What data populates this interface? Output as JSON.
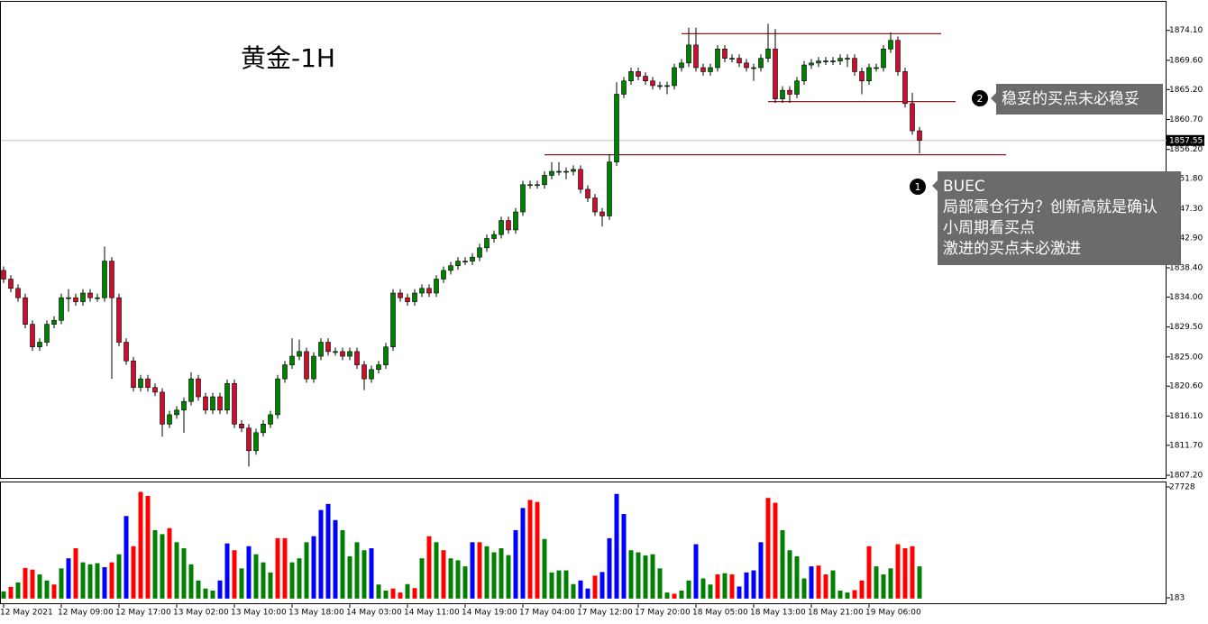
{
  "chart_data": {
    "type": "candlestick",
    "title": "黄金-1H",
    "ylim": [
      1806.8,
      1878.4
    ],
    "yticks": [
      {
        "value": 1874.1,
        "label": "1874.10"
      },
      {
        "value": 1869.6,
        "label": "1869.60"
      },
      {
        "value": 1865.2,
        "label": "1865.20"
      },
      {
        "value": 1860.7,
        "label": "1860.70"
      },
      {
        "value": 1856.2,
        "label": "1856.20"
      },
      {
        "value": 1851.8,
        "label": "1851.80"
      },
      {
        "value": 1847.3,
        "label": "1847.30"
      },
      {
        "value": 1842.9,
        "label": "1842.90"
      },
      {
        "value": 1838.4,
        "label": "1838.40"
      },
      {
        "value": 1834.0,
        "label": "1834.00"
      },
      {
        "value": 1829.5,
        "label": "1829.50"
      },
      {
        "value": 1825.0,
        "label": "1825.00"
      },
      {
        "value": 1820.6,
        "label": "1820.60"
      },
      {
        "value": 1816.1,
        "label": "1816.10"
      },
      {
        "value": 1811.7,
        "label": "1811.70"
      },
      {
        "value": 1807.2,
        "label": "1807.20"
      }
    ],
    "xticks": [
      {
        "value": 0,
        "label": "12 May 2021"
      },
      {
        "value": 8,
        "label": "12 May 09:00"
      },
      {
        "value": 16,
        "label": "12 May 17:00"
      },
      {
        "value": 24,
        "label": "13 May 02:00"
      },
      {
        "value": 32,
        "label": "13 May 10:00"
      },
      {
        "value": 40,
        "label": "13 May 18:00"
      },
      {
        "value": 48,
        "label": "14 May 03:00"
      },
      {
        "value": 56,
        "label": "14 May 11:00"
      },
      {
        "value": 64,
        "label": "14 May 19:00"
      },
      {
        "value": 72,
        "label": "17 May 04:00"
      },
      {
        "value": 80,
        "label": "17 May 12:00"
      },
      {
        "value": 88,
        "label": "17 May 20:00"
      },
      {
        "value": 96,
        "label": "18 May 05:00"
      },
      {
        "value": 104,
        "label": "18 May 13:00"
      },
      {
        "value": 112,
        "label": "18 May 21:00"
      },
      {
        "value": 120,
        "label": "19 May 06:00"
      }
    ],
    "up_color": "#008000",
    "down_color": "#c8102e",
    "candles": [
      [
        1838.0,
        1838.6,
        1836.1,
        1836.7
      ],
      [
        1836.7,
        1837.3,
        1834.7,
        1835.3
      ],
      [
        1835.3,
        1835.9,
        1833.3,
        1833.9
      ],
      [
        1833.9,
        1834.5,
        1829.3,
        1829.9
      ],
      [
        1829.9,
        1830.5,
        1825.9,
        1826.5
      ],
      [
        1826.5,
        1827.8,
        1825.9,
        1827.2
      ],
      [
        1827.2,
        1830.5,
        1826.6,
        1829.9
      ],
      [
        1829.9,
        1831.1,
        1829.3,
        1830.5
      ],
      [
        1830.5,
        1834.5,
        1829.9,
        1833.9
      ],
      [
        1833.9,
        1835.2,
        1831.8,
        1833.9
      ],
      [
        1833.9,
        1834.5,
        1832.7,
        1833.3
      ],
      [
        1833.3,
        1835.2,
        1832.7,
        1834.6
      ],
      [
        1834.6,
        1835.2,
        1833.3,
        1833.9
      ],
      [
        1833.9,
        1834.5,
        1833.3,
        1833.9
      ],
      [
        1833.9,
        1841.6,
        1833.3,
        1839.4
      ],
      [
        1839.4,
        1840.0,
        1821.7,
        1833.9
      ],
      [
        1833.9,
        1834.5,
        1826.6,
        1827.2
      ],
      [
        1827.2,
        1827.8,
        1823.8,
        1824.4
      ],
      [
        1824.4,
        1825.0,
        1819.8,
        1820.4
      ],
      [
        1820.4,
        1822.3,
        1819.8,
        1821.7
      ],
      [
        1821.7,
        1822.3,
        1819.8,
        1820.4
      ],
      [
        1820.4,
        1821.0,
        1819.1,
        1819.7
      ],
      [
        1819.7,
        1820.3,
        1813.0,
        1814.9
      ],
      [
        1814.9,
        1816.9,
        1814.3,
        1816.3
      ],
      [
        1816.3,
        1817.6,
        1815.7,
        1817.0
      ],
      [
        1817.0,
        1818.9,
        1813.6,
        1818.3
      ],
      [
        1818.3,
        1822.7,
        1817.7,
        1821.7
      ],
      [
        1821.7,
        1822.3,
        1818.4,
        1819.0
      ],
      [
        1819.0,
        1819.6,
        1816.4,
        1817.0
      ],
      [
        1817.0,
        1819.6,
        1816.4,
        1819.0
      ],
      [
        1819.0,
        1819.6,
        1816.4,
        1817.0
      ],
      [
        1817.0,
        1821.6,
        1816.4,
        1821.0
      ],
      [
        1821.0,
        1821.6,
        1814.3,
        1814.9
      ],
      [
        1814.9,
        1815.5,
        1813.7,
        1814.3
      ],
      [
        1814.3,
        1814.9,
        1808.5,
        1810.9
      ],
      [
        1810.9,
        1814.2,
        1810.3,
        1813.6
      ],
      [
        1813.6,
        1815.5,
        1813.0,
        1814.9
      ],
      [
        1814.9,
        1816.9,
        1814.3,
        1816.3
      ],
      [
        1816.3,
        1822.3,
        1815.7,
        1821.7
      ],
      [
        1821.7,
        1824.4,
        1821.1,
        1823.8
      ],
      [
        1823.8,
        1827.8,
        1823.2,
        1825.1
      ],
      [
        1825.1,
        1827.6,
        1824.5,
        1825.8
      ],
      [
        1825.8,
        1826.4,
        1821.1,
        1821.7
      ],
      [
        1821.7,
        1825.7,
        1821.1,
        1825.1
      ],
      [
        1825.1,
        1827.8,
        1824.5,
        1827.2
      ],
      [
        1827.2,
        1827.8,
        1825.2,
        1825.8
      ],
      [
        1825.8,
        1826.4,
        1825.2,
        1825.8
      ],
      [
        1825.8,
        1826.4,
        1824.5,
        1825.1
      ],
      [
        1825.1,
        1826.4,
        1824.5,
        1825.8
      ],
      [
        1825.8,
        1826.4,
        1823.2,
        1823.8
      ],
      [
        1823.8,
        1824.4,
        1820.0,
        1821.7
      ],
      [
        1821.7,
        1823.7,
        1821.1,
        1823.1
      ],
      [
        1823.1,
        1824.4,
        1822.5,
        1823.8
      ],
      [
        1823.8,
        1827.1,
        1823.2,
        1826.5
      ],
      [
        1826.5,
        1835.2,
        1825.9,
        1834.6
      ],
      [
        1834.6,
        1835.2,
        1833.3,
        1833.9
      ],
      [
        1833.9,
        1834.5,
        1832.7,
        1833.3
      ],
      [
        1833.3,
        1835.2,
        1832.7,
        1834.6
      ],
      [
        1834.6,
        1835.9,
        1834.0,
        1835.3
      ],
      [
        1835.3,
        1835.9,
        1834.0,
        1834.6
      ],
      [
        1834.6,
        1837.3,
        1834.0,
        1836.7
      ],
      [
        1836.7,
        1838.6,
        1836.1,
        1838.0
      ],
      [
        1838.0,
        1839.3,
        1837.4,
        1838.7
      ],
      [
        1838.7,
        1840.0,
        1838.1,
        1839.4
      ],
      [
        1839.4,
        1840.0,
        1838.8,
        1839.4
      ],
      [
        1839.4,
        1840.6,
        1838.8,
        1840.0
      ],
      [
        1840.0,
        1842.0,
        1839.4,
        1841.4
      ],
      [
        1841.4,
        1843.4,
        1840.8,
        1842.8
      ],
      [
        1842.8,
        1844.0,
        1842.2,
        1843.4
      ],
      [
        1843.4,
        1846.1,
        1842.8,
        1845.5
      ],
      [
        1845.5,
        1846.1,
        1843.5,
        1844.1
      ],
      [
        1844.1,
        1847.4,
        1843.5,
        1846.8
      ],
      [
        1846.8,
        1851.5,
        1846.2,
        1850.9
      ],
      [
        1850.9,
        1851.5,
        1850.3,
        1850.9
      ],
      [
        1850.9,
        1851.5,
        1850.3,
        1850.9
      ],
      [
        1850.9,
        1852.9,
        1850.3,
        1852.3
      ],
      [
        1852.3,
        1854.3,
        1851.7,
        1852.9
      ],
      [
        1852.9,
        1854.3,
        1852.3,
        1852.9
      ],
      [
        1852.9,
        1853.5,
        1851.7,
        1852.9
      ],
      [
        1852.9,
        1853.8,
        1852.3,
        1853.2
      ],
      [
        1853.2,
        1853.8,
        1849.6,
        1850.2
      ],
      [
        1850.2,
        1850.8,
        1848.3,
        1848.9
      ],
      [
        1848.9,
        1849.5,
        1846.2,
        1846.8
      ],
      [
        1846.8,
        1847.4,
        1844.6,
        1846.2
      ],
      [
        1846.2,
        1855.5,
        1845.6,
        1854.3
      ],
      [
        1854.3,
        1866.3,
        1853.7,
        1864.5
      ],
      [
        1864.5,
        1867.1,
        1863.9,
        1866.5
      ],
      [
        1866.5,
        1868.5,
        1865.9,
        1867.9
      ],
      [
        1867.9,
        1868.5,
        1866.6,
        1867.2
      ],
      [
        1867.2,
        1867.8,
        1865.9,
        1866.5
      ],
      [
        1866.5,
        1867.1,
        1865.2,
        1865.8
      ],
      [
        1865.8,
        1866.4,
        1865.2,
        1865.8
      ],
      [
        1865.8,
        1866.4,
        1864.5,
        1865.8
      ],
      [
        1865.8,
        1869.1,
        1865.2,
        1868.5
      ],
      [
        1868.5,
        1869.8,
        1867.9,
        1869.2
      ],
      [
        1869.2,
        1874.5,
        1868.6,
        1871.9
      ],
      [
        1871.9,
        1874.5,
        1867.9,
        1868.5
      ],
      [
        1868.5,
        1869.1,
        1867.3,
        1867.9
      ],
      [
        1867.9,
        1869.1,
        1867.3,
        1868.5
      ],
      [
        1868.5,
        1871.9,
        1867.9,
        1871.3
      ],
      [
        1871.3,
        1871.9,
        1869.3,
        1869.9
      ],
      [
        1869.9,
        1870.5,
        1869.3,
        1869.9
      ],
      [
        1869.9,
        1870.5,
        1868.6,
        1869.2
      ],
      [
        1869.2,
        1869.8,
        1867.9,
        1868.5
      ],
      [
        1868.5,
        1869.1,
        1866.5,
        1868.5
      ],
      [
        1868.5,
        1870.5,
        1867.9,
        1869.9
      ],
      [
        1869.9,
        1875.1,
        1869.3,
        1871.3
      ],
      [
        1871.3,
        1874.3,
        1863.2,
        1863.8
      ],
      [
        1863.8,
        1865.7,
        1863.2,
        1865.1
      ],
      [
        1865.1,
        1865.7,
        1863.2,
        1864.5
      ],
      [
        1864.5,
        1867.1,
        1863.9,
        1866.5
      ],
      [
        1866.5,
        1869.5,
        1865.9,
        1868.9
      ],
      [
        1868.9,
        1869.8,
        1868.3,
        1869.2
      ],
      [
        1869.2,
        1870.1,
        1868.6,
        1869.5
      ],
      [
        1869.5,
        1870.1,
        1868.9,
        1869.5
      ],
      [
        1869.5,
        1870.1,
        1868.9,
        1869.5
      ],
      [
        1869.5,
        1870.5,
        1868.9,
        1869.9
      ],
      [
        1869.9,
        1870.5,
        1868.6,
        1869.9
      ],
      [
        1869.9,
        1870.5,
        1867.3,
        1867.9
      ],
      [
        1867.9,
        1868.5,
        1864.5,
        1866.5
      ],
      [
        1866.5,
        1869.1,
        1865.9,
        1868.5
      ],
      [
        1868.5,
        1869.1,
        1867.9,
        1868.5
      ],
      [
        1868.5,
        1871.9,
        1867.9,
        1871.3
      ],
      [
        1871.3,
        1873.8,
        1870.7,
        1872.6
      ],
      [
        1872.6,
        1873.2,
        1867.3,
        1867.9
      ],
      [
        1867.9,
        1868.5,
        1862.5,
        1863.1
      ],
      [
        1863.1,
        1864.7,
        1858.4,
        1859.0
      ],
      [
        1859.0,
        1859.6,
        1855.6,
        1857.55
      ]
    ],
    "current_price": {
      "value": 1857.55,
      "label": "1857.55",
      "color": "#c0c0c0"
    },
    "levels": [
      {
        "value": 1873.6,
        "start": 94,
        "end": 130
      },
      {
        "value": 1863.4,
        "start": 106,
        "end": 132
      },
      {
        "value": 1855.4,
        "start": 75,
        "end": 139
      }
    ],
    "level_color": "#8b1a1a",
    "volume": {
      "ylim": [
        -1160,
        28850
      ],
      "yticks": [
        27728,
        183
      ],
      "values": [
        1800,
        2900,
        4000,
        7600,
        7200,
        6000,
        4500,
        3500,
        7500,
        10000,
        12500,
        9000,
        8500,
        8800,
        7800,
        9000,
        11000,
        20500,
        13000,
        26500,
        25500,
        17000,
        16000,
        17500,
        14000,
        12500,
        8500,
        4500,
        2500,
        2000,
        4500,
        13700,
        12000,
        7500,
        13000,
        11000,
        9000,
        6500,
        15000,
        15000,
        9000,
        10000,
        14000,
        15500,
        22000,
        23500,
        19500,
        17000,
        10500,
        14000,
        12000,
        12500,
        3500,
        2000,
        2500,
        1500,
        3600,
        2600,
        10000,
        15500,
        14000,
        12000,
        10000,
        9500,
        8000,
        14000,
        14000,
        13000,
        11500,
        12500,
        10800,
        17000,
        22500,
        24500,
        24000,
        14800,
        6500,
        7000,
        7000,
        3600,
        4500,
        2500,
        5700,
        6600,
        15000,
        26000,
        21000,
        12000,
        11500,
        10700,
        11000,
        7500,
        1500,
        1200,
        2000,
        4500,
        13500,
        5000,
        3500,
        6000,
        6300,
        6000,
        3000,
        6500,
        7000,
        14000,
        25000,
        23800,
        17000,
        12000,
        10500,
        5000,
        8000,
        8200,
        6000,
        7000,
        2000,
        1500,
        2100,
        4500,
        13000,
        8000,
        6000,
        7500,
        13500,
        12500,
        13000,
        8000
      ],
      "colors": [
        "green",
        "red",
        "green",
        "red",
        "red",
        "green",
        "green",
        "red",
        "green",
        "blue",
        "red",
        "green",
        "green",
        "green",
        "blue",
        "red",
        "green",
        "blue",
        "red",
        "red",
        "red",
        "green",
        "green",
        "red",
        "green",
        "green",
        "green",
        "green",
        "green",
        "green",
        "blue",
        "blue",
        "red",
        "green",
        "blue",
        "green",
        "green",
        "green",
        "red",
        "red",
        "green",
        "green",
        "green",
        "blue",
        "blue",
        "blue",
        "blue",
        "green",
        "green",
        "green",
        "green",
        "blue",
        "green",
        "green",
        "red",
        "red",
        "green",
        "red",
        "green",
        "red",
        "green",
        "red",
        "green",
        "green",
        "green",
        "blue",
        "red",
        "green",
        "green",
        "green",
        "green",
        "blue",
        "blue",
        "red",
        "red",
        "green",
        "green",
        "green",
        "green",
        "green",
        "blue",
        "blue",
        "red",
        "blue",
        "blue",
        "blue",
        "blue",
        "green",
        "green",
        "green",
        "green",
        "green",
        "green",
        "red",
        "green",
        "green",
        "blue",
        "green",
        "green",
        "red",
        "green",
        "red",
        "blue",
        "blue",
        "blue",
        "blue",
        "red",
        "red",
        "green",
        "green",
        "green",
        "green",
        "blue",
        "red",
        "red",
        "green",
        "green",
        "green",
        "red",
        "red",
        "red",
        "green",
        "green",
        "green",
        "red",
        "red",
        "red",
        "green"
      ]
    },
    "annotations": [
      {
        "number": "2",
        "lines": [
          "稳妥的买点未必稳妥"
        ]
      },
      {
        "number": "1",
        "lines": [
          "BUEC",
          "局部震仓行为？创新高就是确认",
          "小周期看买点",
          "激进的买点未必激进"
        ]
      }
    ]
  }
}
